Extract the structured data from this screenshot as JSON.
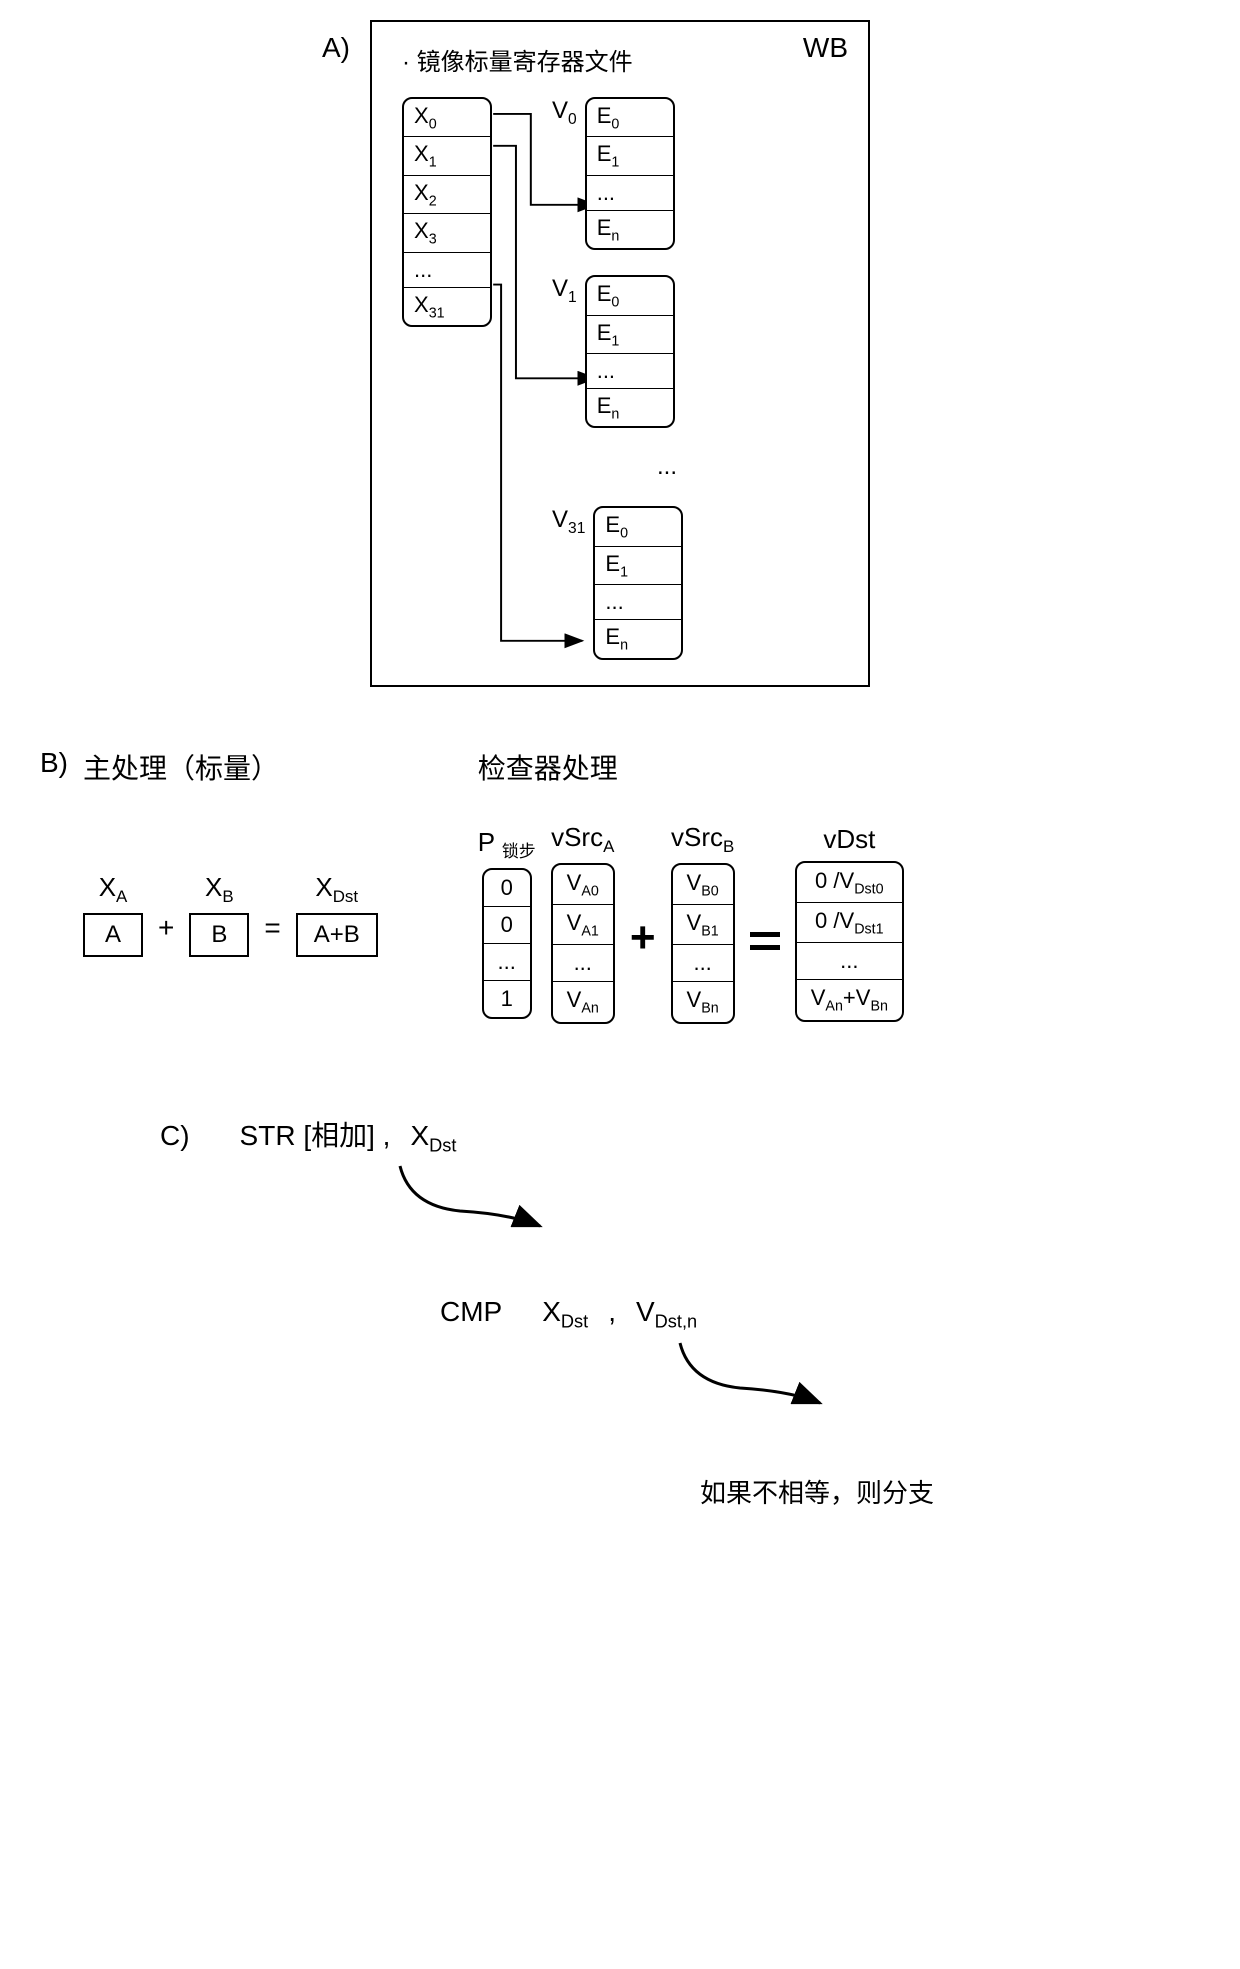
{
  "sectionA": {
    "label": "A)",
    "wb": "WB",
    "title": "· 镜像标量寄存器文件",
    "xRegs": [
      "X<sub>0</sub>",
      "X<sub>1</sub>",
      "X<sub>2</sub>",
      "X<sub>3</sub>",
      "...",
      "X<sub>31</sub>"
    ],
    "vGroups": [
      {
        "label": "V<sub>0</sub>",
        "cells": [
          "E<sub>0</sub>",
          "E<sub>1</sub>",
          "...",
          "E<sub>n</sub>"
        ]
      },
      {
        "label": "V<sub>1</sub>",
        "cells": [
          "E<sub>0</sub>",
          "E<sub>1</sub>",
          "...",
          "E<sub>n</sub>"
        ]
      }
    ],
    "vDots": "...",
    "vLast": {
      "label": "V<sub>31</sub>",
      "cells": [
        "E<sub>0</sub>",
        "E<sub>1</sub>",
        "...",
        "E<sub>n</sub>"
      ]
    },
    "arrows": {
      "stroke": "#000",
      "strokeWidth": 2
    }
  },
  "sectionB": {
    "label": "B)",
    "leftTitle": "主处理（标量）",
    "rightTitle": "检查器处理",
    "scalar": {
      "xa": {
        "var": "X<sub>A</sub>",
        "val": "A"
      },
      "xb": {
        "var": "X<sub>B</sub>",
        "val": "B"
      },
      "xdst": {
        "var": "X<sub>Dst</sub>",
        "val": "A+B"
      },
      "plus": "+",
      "eq": "="
    },
    "vecP": {
      "var": "P <sub>锁步</sub>",
      "cells": [
        "0",
        "0",
        "...",
        "1"
      ]
    },
    "vecA": {
      "var": "vSrc<sub>A</sub>",
      "cells": [
        "V<sub>A0</sub>",
        "V<sub>A1</sub>",
        "...",
        "V<sub>An</sub>"
      ]
    },
    "vecB": {
      "var": "vSrc<sub>B</sub>",
      "cells": [
        "V<sub>B0</sub>",
        "V<sub>B1</sub>",
        "...",
        "V<sub>Bn</sub>"
      ]
    },
    "vecDst": {
      "var": "vDst",
      "cells": [
        "0 /V<sub>Dst0</sub>",
        "0 /V<sub>Dst1</sub>",
        "...",
        "V<sub>An</sub>+V<sub>Bn</sub>"
      ]
    }
  },
  "sectionC": {
    "label": "C)",
    "line1": {
      "op": "STR [相加] ,",
      "arg": "X<sub>Dst</sub>"
    },
    "line2": {
      "op": "CMP",
      "arg1": "X<sub>Dst</sub>",
      "sep": ",",
      "arg2": "V<sub>Dst,n</sub>"
    },
    "line3": "如果不相等，则分支",
    "arrowColor": "#000"
  },
  "colors": {
    "border": "#000000",
    "bg": "#ffffff"
  }
}
